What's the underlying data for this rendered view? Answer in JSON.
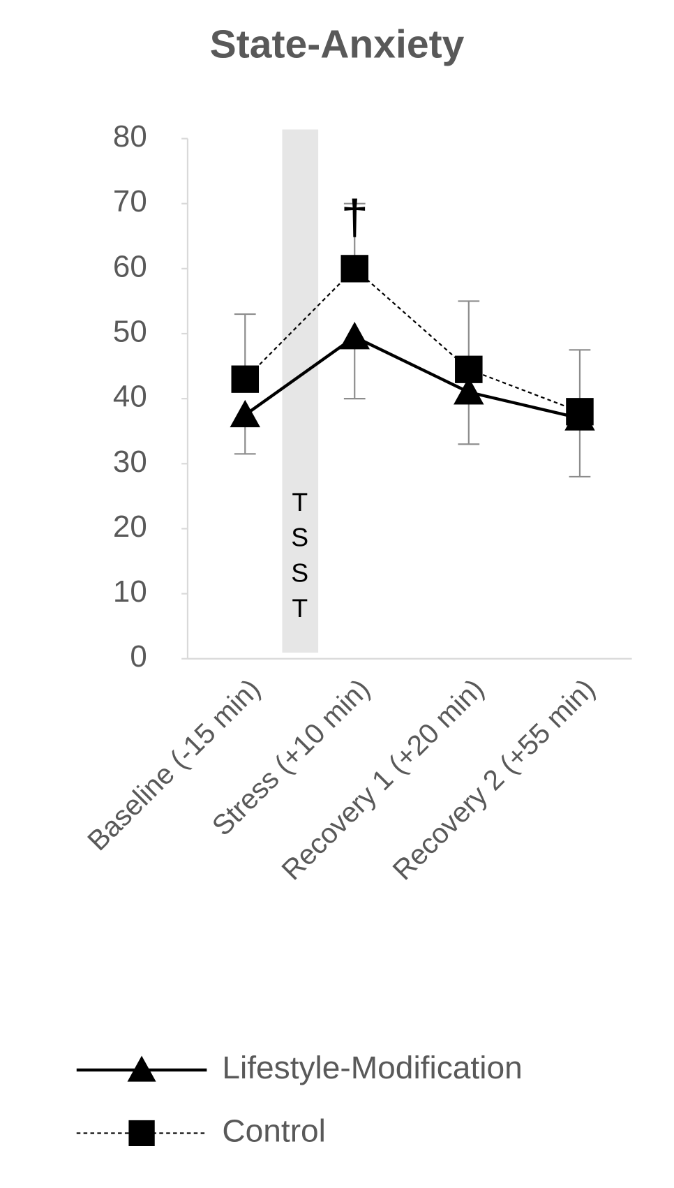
{
  "chart_data": {
    "type": "line",
    "title": "State-Anxiety",
    "categories": [
      "Baseline (-15 min)",
      "Stress (+10 min)",
      "Recovery 1 (+20 min)",
      "Recovery 2 (+55 min)"
    ],
    "series": [
      {
        "name": "Lifestyle-Modification",
        "color": "#000000",
        "marker": "triangle",
        "dash": "solid",
        "values": [
          37.5,
          49.5,
          41,
          37
        ],
        "errors": [
          6,
          9.5,
          8,
          9
        ],
        "error_direction": "down"
      },
      {
        "name": "Control",
        "color": "#000000",
        "marker": "square",
        "dash": "dotted",
        "values": [
          43,
          60,
          44.5,
          38
        ],
        "errors": [
          10,
          10,
          10.5,
          9.5
        ],
        "error_direction": "up"
      }
    ],
    "ylim": [
      0,
      80
    ],
    "yticks": [
      0,
      10,
      20,
      30,
      40,
      50,
      60,
      70,
      80
    ],
    "grid": false,
    "annotations": [
      "†",
      "TSST"
    ]
  }
}
